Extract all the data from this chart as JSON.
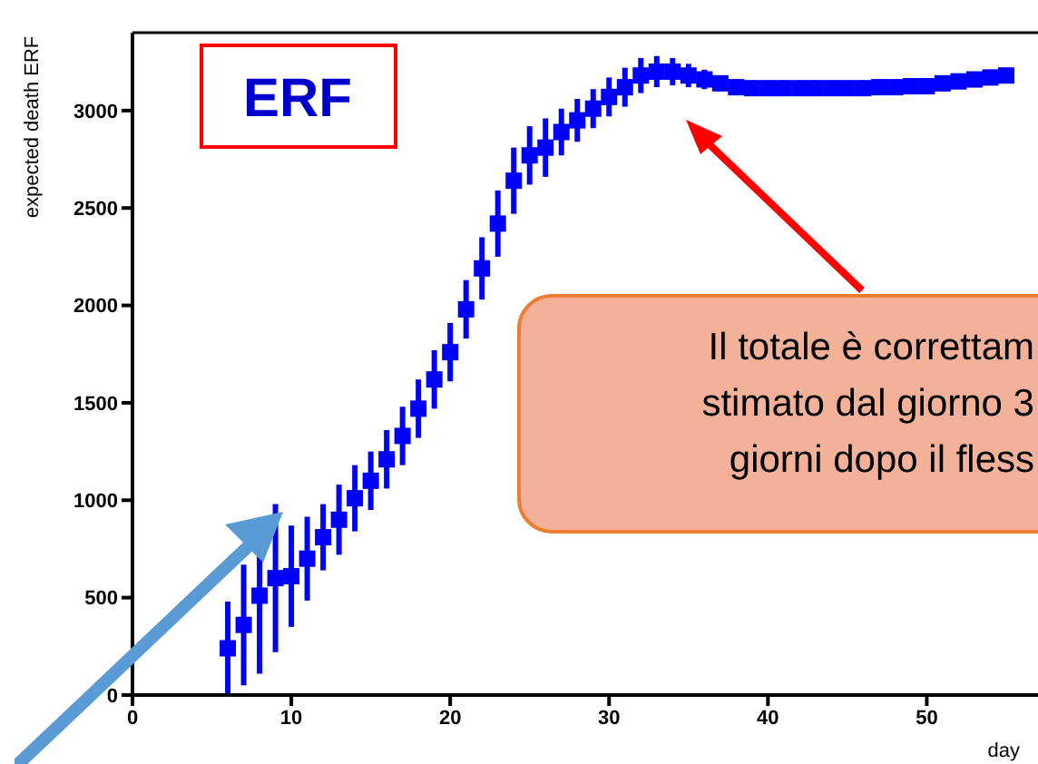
{
  "chart_data": {
    "type": "scatter",
    "xlabel": "day",
    "ylabel": "expected death ERF",
    "x": [
      6,
      7,
      8,
      9,
      10,
      11,
      12,
      13,
      14,
      15,
      16,
      17,
      18,
      19,
      20,
      21,
      22,
      23,
      24,
      25,
      26,
      27,
      28,
      29,
      30,
      31,
      32,
      33,
      34,
      35,
      36,
      37,
      38,
      39,
      40,
      41,
      42,
      43,
      44,
      45,
      46,
      47,
      48,
      49,
      50,
      51,
      52,
      53,
      54,
      55
    ],
    "values": [
      240,
      360,
      510,
      600,
      610,
      700,
      810,
      900,
      1010,
      1100,
      1210,
      1330,
      1470,
      1620,
      1760,
      1980,
      2190,
      2420,
      2640,
      2770,
      2810,
      2890,
      2950,
      3010,
      3070,
      3120,
      3180,
      3200,
      3200,
      3180,
      3160,
      3140,
      3120,
      3115,
      3115,
      3115,
      3115,
      3115,
      3115,
      3115,
      3115,
      3120,
      3120,
      3125,
      3125,
      3140,
      3150,
      3160,
      3170,
      3180
    ],
    "errors": [
      240,
      310,
      400,
      380,
      260,
      215,
      170,
      180,
      170,
      150,
      150,
      150,
      150,
      150,
      150,
      150,
      160,
      170,
      170,
      150,
      150,
      120,
      110,
      100,
      100,
      100,
      90,
      80,
      70,
      60,
      50,
      40,
      40,
      40,
      40,
      40,
      40,
      40,
      40,
      40,
      40,
      40,
      40,
      40,
      40,
      40,
      40,
      40,
      40,
      40
    ],
    "color": "#0000ff",
    "marker": "square",
    "grid": false,
    "xlim": [
      0,
      57
    ],
    "xticks": [
      0,
      10,
      20,
      30,
      40,
      50
    ],
    "ylim": [
      0,
      3400
    ],
    "yticks": [
      0,
      500,
      1000,
      1500,
      2000,
      2500,
      3000
    ],
    "annotations": [
      "ERF",
      "Il totale è correttam\nstimato dal giorno 3\ngiorni dopo il fless"
    ]
  }
}
